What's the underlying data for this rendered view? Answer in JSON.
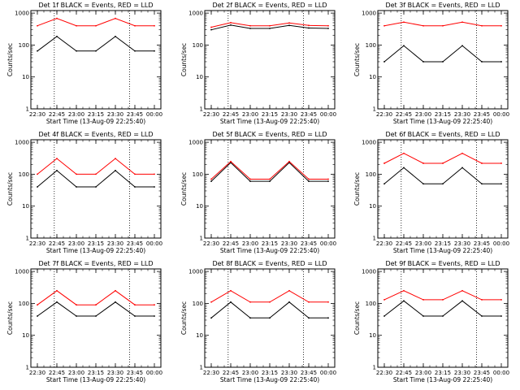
{
  "chart_data": [
    {
      "type": "line",
      "title": "Det 1f BLACK = Events, RED = LLD",
      "xlabel": "Start Time (13-Aug-09 22:25:40)",
      "ylabel": "Counts/sec",
      "yscale": "log",
      "ylim": [
        1,
        1000
      ],
      "x_tick_labels": [
        "22:30",
        "22:45",
        "23:00",
        "23:15",
        "23:30",
        "23:45",
        "00:00"
      ],
      "y_tick_labels": [
        "1",
        "10",
        "100",
        "1000"
      ],
      "markers": [
        "22:43",
        "23:41"
      ],
      "series": [
        {
          "color": "#000000",
          "x": [
            "22:30",
            "22:45",
            "23:00",
            "23:15",
            "23:30",
            "23:45",
            "00:00"
          ],
          "y": [
            65,
            185,
            65,
            65,
            185,
            65,
            65
          ]
        },
        {
          "color": "#ff0000",
          "x": [
            "22:30",
            "22:45",
            "23:00",
            "23:15",
            "23:30",
            "23:45",
            "00:00"
          ],
          "y": [
            400,
            680,
            400,
            400,
            680,
            400,
            400
          ]
        }
      ]
    },
    {
      "type": "line",
      "title": "Det 2f BLACK = Events, RED = LLD",
      "xlabel": "Start Time (13-Aug-09 22:25:40)",
      "ylabel": "Counts/sec",
      "yscale": "log",
      "ylim": [
        1,
        1000
      ],
      "x_tick_labels": [
        "22:30",
        "22:45",
        "23:00",
        "23:15",
        "23:30",
        "23:45",
        "00:00"
      ],
      "y_tick_labels": [
        "1",
        "10",
        "100",
        "1000"
      ],
      "markers": [
        "22:43",
        "23:41"
      ],
      "series": [
        {
          "color": "#000000",
          "x": [
            "22:30",
            "22:45",
            "23:00",
            "23:15",
            "23:30",
            "23:45",
            "00:00"
          ],
          "y": [
            300,
            420,
            330,
            330,
            410,
            340,
            330
          ]
        },
        {
          "color": "#ff0000",
          "x": [
            "22:30",
            "22:45",
            "23:00",
            "23:15",
            "23:30",
            "23:45",
            "00:00"
          ],
          "y": [
            360,
            500,
            400,
            400,
            490,
            410,
            400
          ]
        }
      ]
    },
    {
      "type": "line",
      "title": "Det 3f BLACK = Events, RED = LLD",
      "xlabel": "Start Time (13-Aug-09 22:25:40)",
      "ylabel": "Counts/sec",
      "yscale": "log",
      "ylim": [
        1,
        1000
      ],
      "x_tick_labels": [
        "22:30",
        "22:45",
        "23:00",
        "23:15",
        "23:30",
        "23:45",
        "00:00"
      ],
      "y_tick_labels": [
        "1",
        "10",
        "100",
        "1000"
      ],
      "markers": [
        "22:43",
        "23:41"
      ],
      "series": [
        {
          "color": "#000000",
          "x": [
            "22:30",
            "22:45",
            "23:00",
            "23:15",
            "23:30",
            "23:45",
            "00:00"
          ],
          "y": [
            30,
            95,
            30,
            30,
            95,
            30,
            30
          ]
        },
        {
          "color": "#ff0000",
          "x": [
            "22:30",
            "22:45",
            "23:00",
            "23:15",
            "23:30",
            "23:45",
            "00:00"
          ],
          "y": [
            400,
            520,
            400,
            400,
            520,
            400,
            400
          ]
        }
      ]
    },
    {
      "type": "line",
      "title": "Det 4f BLACK = Events, RED = LLD",
      "xlabel": "Start Time (13-Aug-09 22:25:40)",
      "ylabel": "Counts/sec",
      "yscale": "log",
      "ylim": [
        1,
        1000
      ],
      "x_tick_labels": [
        "22:30",
        "22:45",
        "23:00",
        "23:15",
        "23:30",
        "23:45",
        "00:00"
      ],
      "y_tick_labels": [
        "1",
        "10",
        "100",
        "1000"
      ],
      "markers": [
        "22:43",
        "23:41"
      ],
      "series": [
        {
          "color": "#000000",
          "x": [
            "22:30",
            "22:45",
            "23:00",
            "23:15",
            "23:30",
            "23:45",
            "00:00"
          ],
          "y": [
            40,
            130,
            40,
            40,
            130,
            40,
            40
          ]
        },
        {
          "color": "#ff0000",
          "x": [
            "22:30",
            "22:45",
            "23:00",
            "23:15",
            "23:30",
            "23:45",
            "00:00"
          ],
          "y": [
            100,
            310,
            100,
            100,
            310,
            100,
            100
          ]
        }
      ]
    },
    {
      "type": "line",
      "title": "Det 5f BLACK = Events, RED = LLD",
      "xlabel": "Start Time (13-Aug-09 22:25:40)",
      "ylabel": "Counts/sec",
      "yscale": "log",
      "ylim": [
        1,
        1000
      ],
      "x_tick_labels": [
        "22:30",
        "22:45",
        "23:00",
        "23:15",
        "23:30",
        "23:45",
        "00:00"
      ],
      "y_tick_labels": [
        "1",
        "10",
        "100",
        "1000"
      ],
      "markers": [
        "22:43",
        "23:41"
      ],
      "series": [
        {
          "color": "#000000",
          "x": [
            "22:30",
            "22:45",
            "23:00",
            "23:15",
            "23:30",
            "23:45",
            "00:00"
          ],
          "y": [
            60,
            230,
            60,
            60,
            230,
            60,
            60
          ]
        },
        {
          "color": "#ff0000",
          "x": [
            "22:30",
            "22:45",
            "23:00",
            "23:15",
            "23:30",
            "23:45",
            "00:00"
          ],
          "y": [
            70,
            250,
            70,
            70,
            250,
            70,
            70
          ]
        }
      ]
    },
    {
      "type": "line",
      "title": "Det 6f BLACK = Events, RED = LLD",
      "xlabel": "Start Time (13-Aug-09 22:25:40)",
      "ylabel": "Counts/sec",
      "yscale": "log",
      "ylim": [
        1,
        1000
      ],
      "x_tick_labels": [
        "22:30",
        "22:45",
        "23:00",
        "23:15",
        "23:30",
        "23:45",
        "00:00"
      ],
      "y_tick_labels": [
        "1",
        "10",
        "100",
        "1000"
      ],
      "markers": [
        "22:43",
        "23:41"
      ],
      "series": [
        {
          "color": "#000000",
          "x": [
            "22:30",
            "22:45",
            "23:00",
            "23:15",
            "23:30",
            "23:45",
            "00:00"
          ],
          "y": [
            50,
            160,
            50,
            50,
            160,
            50,
            50
          ]
        },
        {
          "color": "#ff0000",
          "x": [
            "22:30",
            "22:45",
            "23:00",
            "23:15",
            "23:30",
            "23:45",
            "00:00"
          ],
          "y": [
            220,
            450,
            220,
            220,
            450,
            220,
            220
          ]
        }
      ]
    },
    {
      "type": "line",
      "title": "Det 7f BLACK = Events, RED = LLD",
      "xlabel": "Start Time (13-Aug-09 22:25:40)",
      "ylabel": "Counts/sec",
      "yscale": "log",
      "ylim": [
        1,
        1000
      ],
      "x_tick_labels": [
        "22:30",
        "22:45",
        "23:00",
        "23:15",
        "23:30",
        "23:45",
        "00:00"
      ],
      "y_tick_labels": [
        "1",
        "10",
        "100",
        "1000"
      ],
      "markers": [
        "22:43",
        "23:41"
      ],
      "series": [
        {
          "color": "#000000",
          "x": [
            "22:30",
            "22:45",
            "23:00",
            "23:15",
            "23:30",
            "23:45",
            "00:00"
          ],
          "y": [
            40,
            110,
            40,
            40,
            110,
            40,
            40
          ]
        },
        {
          "color": "#ff0000",
          "x": [
            "22:30",
            "22:45",
            "23:00",
            "23:15",
            "23:30",
            "23:45",
            "00:00"
          ],
          "y": [
            90,
            250,
            90,
            90,
            250,
            90,
            90
          ]
        }
      ]
    },
    {
      "type": "line",
      "title": "Det 8f BLACK = Events, RED = LLD",
      "xlabel": "Start Time (13-Aug-09 22:25:40)",
      "ylabel": "Counts/sec",
      "yscale": "log",
      "ylim": [
        1,
        1000
      ],
      "x_tick_labels": [
        "22:30",
        "22:45",
        "23:00",
        "23:15",
        "23:30",
        "23:45",
        "00:00"
      ],
      "y_tick_labels": [
        "1",
        "10",
        "100",
        "1000"
      ],
      "markers": [
        "22:43",
        "23:41"
      ],
      "series": [
        {
          "color": "#000000",
          "x": [
            "22:30",
            "22:45",
            "23:00",
            "23:15",
            "23:30",
            "23:45",
            "00:00"
          ],
          "y": [
            35,
            110,
            35,
            35,
            110,
            35,
            35
          ]
        },
        {
          "color": "#ff0000",
          "x": [
            "22:30",
            "22:45",
            "23:00",
            "23:15",
            "23:30",
            "23:45",
            "00:00"
          ],
          "y": [
            110,
            250,
            110,
            110,
            250,
            110,
            110
          ]
        }
      ]
    },
    {
      "type": "line",
      "title": "Det 9f BLACK = Events, RED = LLD",
      "xlabel": "Start Time (13-Aug-09 22:25:40)",
      "ylabel": "Counts/sec",
      "yscale": "log",
      "ylim": [
        1,
        1000
      ],
      "x_tick_labels": [
        "22:30",
        "22:45",
        "23:00",
        "23:15",
        "23:30",
        "23:45",
        "00:00"
      ],
      "y_tick_labels": [
        "1",
        "10",
        "100",
        "1000"
      ],
      "markers": [
        "22:43",
        "23:41"
      ],
      "series": [
        {
          "color": "#000000",
          "x": [
            "22:30",
            "22:45",
            "23:00",
            "23:15",
            "23:30",
            "23:45",
            "00:00"
          ],
          "y": [
            40,
            120,
            40,
            40,
            120,
            40,
            40
          ]
        },
        {
          "color": "#ff0000",
          "x": [
            "22:30",
            "22:45",
            "23:00",
            "23:15",
            "23:30",
            "23:45",
            "00:00"
          ],
          "y": [
            130,
            250,
            130,
            130,
            250,
            130,
            130
          ]
        }
      ]
    }
  ]
}
